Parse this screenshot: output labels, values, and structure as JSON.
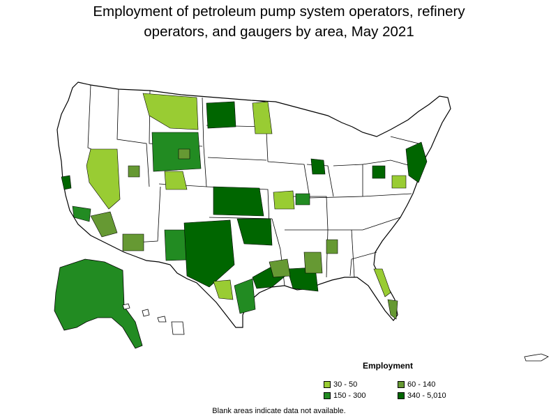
{
  "title_line1": "Employment of petroleum pump system operators, refinery",
  "title_line2": "operators, and gaugers by area, May 2021",
  "legend": {
    "title": "Employment",
    "items": [
      {
        "label": "30 - 50",
        "color": "#99cc33"
      },
      {
        "label": "60 - 140",
        "color": "#669933"
      },
      {
        "label": "150 - 300",
        "color": "#228b22"
      },
      {
        "label": "340 - 5,010",
        "color": "#006600"
      }
    ]
  },
  "note": "Blank areas indicate data not available.",
  "map": {
    "subject": "United States metropolitan and nonmetropolitan areas",
    "no_data_color": "#ffffff",
    "border_color": "#000000"
  }
}
